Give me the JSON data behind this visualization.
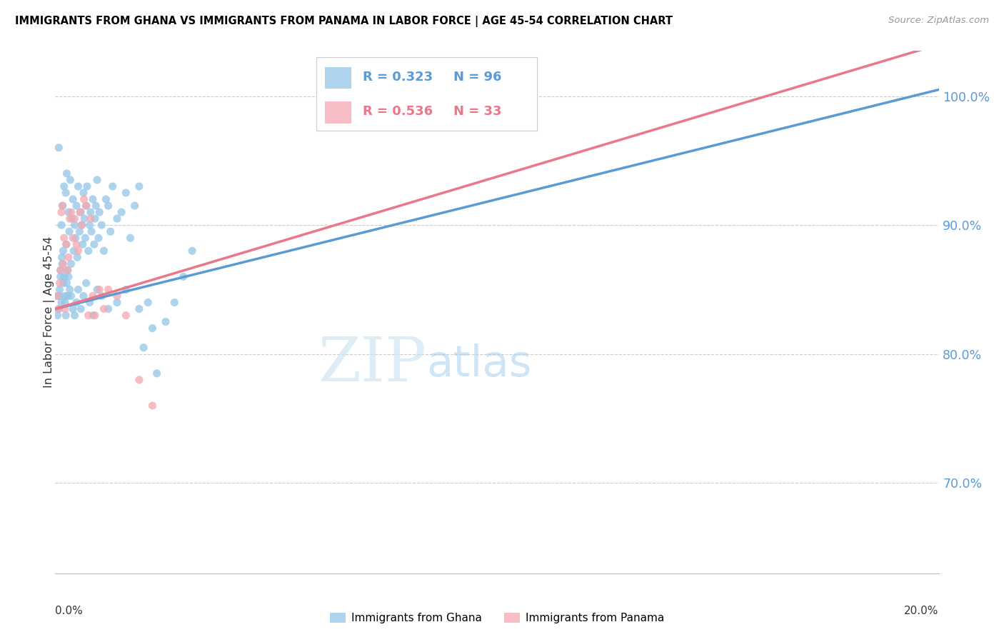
{
  "title": "IMMIGRANTS FROM GHANA VS IMMIGRANTS FROM PANAMA IN LABOR FORCE | AGE 45-54 CORRELATION CHART",
  "source": "Source: ZipAtlas.com",
  "ylabel": "In Labor Force | Age 45-54",
  "x_min": 0.0,
  "x_max": 20.0,
  "y_min": 63.0,
  "y_max": 103.5,
  "y_ticks": [
    70.0,
    80.0,
    90.0,
    100.0
  ],
  "ghana_color": "#93c6e8",
  "panama_color": "#f4a9b0",
  "ghana_R": 0.323,
  "ghana_N": 96,
  "panama_R": 0.536,
  "panama_N": 33,
  "ghana_line_color": "#5b9bd5",
  "panama_line_color": "#e8788a",
  "watermark_zip": "ZIP",
  "watermark_atlas": "atlas",
  "ghana_line_x0": 0.0,
  "ghana_line_y0": 83.5,
  "ghana_line_x1": 20.0,
  "ghana_line_y1": 100.5,
  "panama_line_x0": 0.0,
  "panama_line_y0": 83.5,
  "panama_line_x1": 20.0,
  "panama_line_y1": 104.0,
  "ghana_x": [
    0.05,
    0.08,
    0.1,
    0.12,
    0.14,
    0.15,
    0.17,
    0.18,
    0.2,
    0.22,
    0.24,
    0.25,
    0.26,
    0.28,
    0.3,
    0.32,
    0.34,
    0.36,
    0.38,
    0.4,
    0.42,
    0.44,
    0.46,
    0.48,
    0.5,
    0.52,
    0.55,
    0.58,
    0.6,
    0.62,
    0.64,
    0.66,
    0.68,
    0.7,
    0.72,
    0.75,
    0.78,
    0.8,
    0.82,
    0.85,
    0.88,
    0.9,
    0.92,
    0.95,
    0.98,
    1.0,
    1.05,
    1.1,
    1.15,
    1.2,
    1.25,
    1.3,
    1.4,
    1.5,
    1.6,
    1.7,
    1.8,
    1.9,
    2.0,
    2.1,
    2.2,
    2.3,
    2.5,
    2.7,
    2.9,
    3.1,
    0.05,
    0.08,
    0.1,
    0.12,
    0.14,
    0.16,
    0.18,
    0.2,
    0.22,
    0.24,
    0.26,
    0.28,
    0.3,
    0.33,
    0.36,
    0.4,
    0.44,
    0.48,
    0.52,
    0.58,
    0.64,
    0.7,
    0.78,
    0.86,
    0.95,
    1.05,
    1.2,
    1.4,
    1.6,
    1.9
  ],
  "ghana_y": [
    83.0,
    96.0,
    84.5,
    86.0,
    90.0,
    87.5,
    91.5,
    88.0,
    93.0,
    84.0,
    92.5,
    88.5,
    94.0,
    86.5,
    91.0,
    89.5,
    93.5,
    87.0,
    90.5,
    92.0,
    88.0,
    90.0,
    89.0,
    91.5,
    87.5,
    93.0,
    89.5,
    91.0,
    90.0,
    88.5,
    92.5,
    90.5,
    89.0,
    91.5,
    93.0,
    88.0,
    90.0,
    91.0,
    89.5,
    92.0,
    88.5,
    90.5,
    91.5,
    93.5,
    89.0,
    91.0,
    90.0,
    88.0,
    92.0,
    91.5,
    89.5,
    93.0,
    90.5,
    91.0,
    92.5,
    89.0,
    91.5,
    93.0,
    80.5,
    84.0,
    82.0,
    78.5,
    82.5,
    84.0,
    86.0,
    88.0,
    84.5,
    83.5,
    85.0,
    86.5,
    84.0,
    87.0,
    85.5,
    86.0,
    84.5,
    83.0,
    85.5,
    84.5,
    86.0,
    85.0,
    84.5,
    83.5,
    83.0,
    84.0,
    85.0,
    83.5,
    84.5,
    85.5,
    84.0,
    83.0,
    85.0,
    84.5,
    83.5,
    84.0,
    85.0,
    83.5
  ],
  "panama_x": [
    0.05,
    0.08,
    0.1,
    0.12,
    0.14,
    0.16,
    0.18,
    0.2,
    0.22,
    0.25,
    0.28,
    0.3,
    0.33,
    0.36,
    0.4,
    0.44,
    0.48,
    0.52,
    0.56,
    0.6,
    0.65,
    0.7,
    0.75,
    0.8,
    0.85,
    0.9,
    1.0,
    1.1,
    1.2,
    1.4,
    1.6,
    1.9,
    2.2
  ],
  "panama_y": [
    84.5,
    83.5,
    85.5,
    86.5,
    91.0,
    91.5,
    87.0,
    89.0,
    83.5,
    88.5,
    86.5,
    87.5,
    90.5,
    91.0,
    89.0,
    90.5,
    88.5,
    88.0,
    91.0,
    90.0,
    92.0,
    91.5,
    83.0,
    90.5,
    84.5,
    83.0,
    85.0,
    83.5,
    85.0,
    84.5,
    83.0,
    78.0,
    76.0
  ]
}
